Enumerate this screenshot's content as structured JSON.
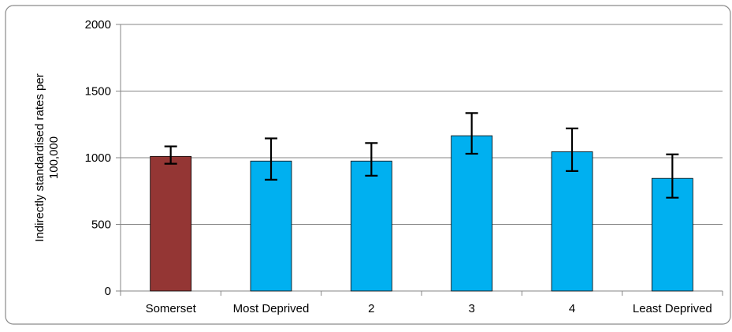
{
  "chart_data": {
    "type": "bar",
    "title": "",
    "xlabel": "",
    "ylabel": "Indirectly standardised rates per 100,000",
    "ylabel_lines": [
      "Indirectly standardised rates per",
      "100,000"
    ],
    "ylim": [
      0,
      2000
    ],
    "yticks": [
      0,
      500,
      1000,
      1500,
      2000
    ],
    "grid": true,
    "legend": "none",
    "categories": [
      "Somerset",
      "Most Deprived",
      "2",
      "3",
      "4",
      "Least Deprived"
    ],
    "values": [
      1010,
      975,
      975,
      1165,
      1045,
      845
    ],
    "error_low": [
      955,
      835,
      865,
      1030,
      900,
      700
    ],
    "error_high": [
      1085,
      1145,
      1110,
      1335,
      1220,
      1025
    ],
    "bar_colors": [
      "#943634",
      "#00B0F0",
      "#00B0F0",
      "#00B0F0",
      "#00B0F0",
      "#00B0F0"
    ]
  }
}
